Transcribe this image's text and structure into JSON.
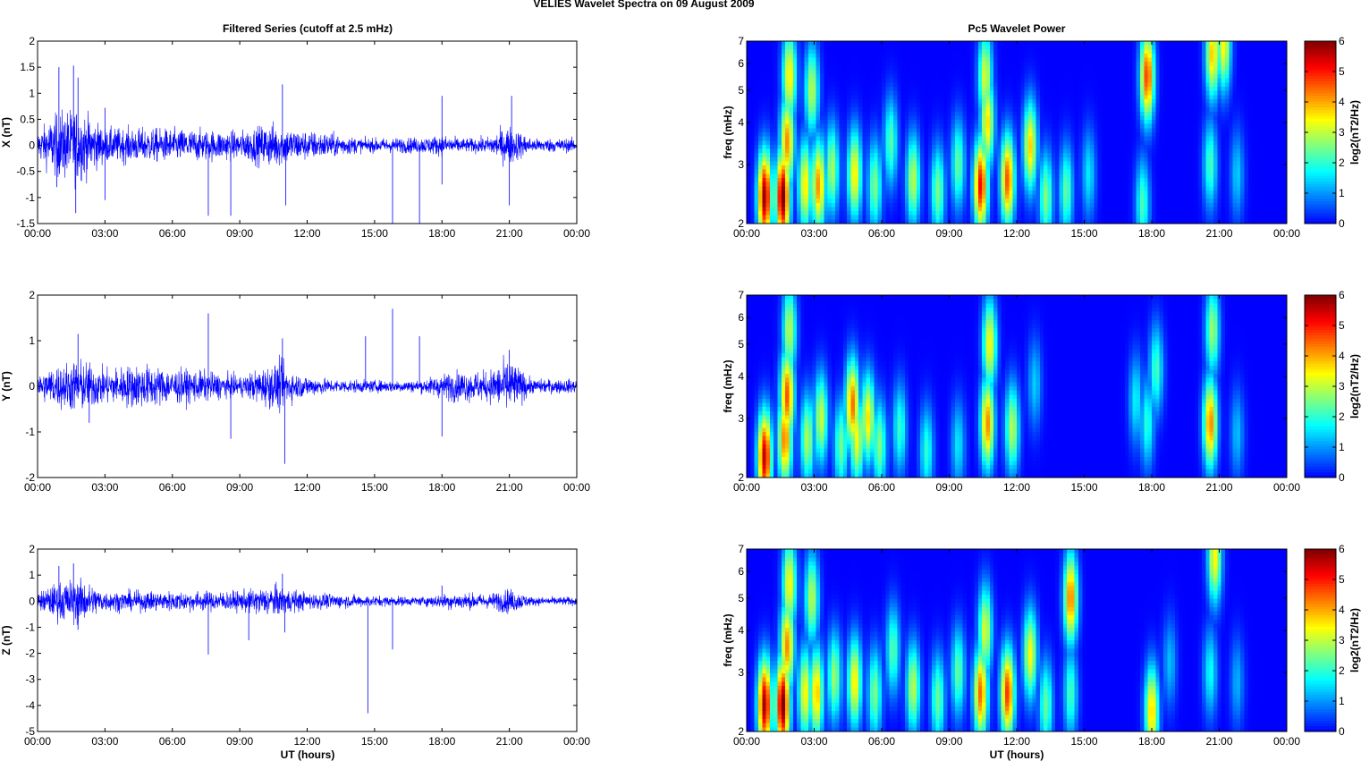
{
  "figure": {
    "title": "VELIES Wavelet Spectra on 09 August    2009",
    "left_title": "Filtered Series (cutoff at 2.5 mHz)",
    "right_title": "Pc5 Wavelet Power",
    "xlabel": "UT (hours)"
  },
  "chart_data": [
    {
      "type": "line",
      "name": "X",
      "ylabel": "X (nT)",
      "xlim": [
        0,
        24
      ],
      "ylim": [
        -1.5,
        2
      ],
      "yticks": [
        -1.5,
        -1,
        -0.5,
        0,
        0.5,
        1,
        1.5,
        2
      ],
      "yticklabels": [
        "-1.5",
        "-1",
        "-0.5",
        "0",
        "0.5",
        "1",
        "1.5",
        "2"
      ],
      "xticklabels": [
        "00:00",
        "03:00",
        "06:00",
        "09:00",
        "12:00",
        "15:00",
        "18:00",
        "21:00",
        "00:00"
      ],
      "line_color": "#0000ff",
      "envelope": [
        [
          0,
          0.25
        ],
        [
          1,
          0.6
        ],
        [
          1.8,
          0.65
        ],
        [
          3,
          0.3
        ],
        [
          5,
          0.3
        ],
        [
          7,
          0.28
        ],
        [
          9,
          0.25
        ],
        [
          10.5,
          0.4
        ],
        [
          11.5,
          0.28
        ],
        [
          13,
          0.22
        ],
        [
          14.5,
          0.12
        ],
        [
          17,
          0.14
        ],
        [
          18,
          0.18
        ],
        [
          19,
          0.12
        ],
        [
          20,
          0.14
        ],
        [
          21,
          0.35
        ],
        [
          22,
          0.12
        ],
        [
          24,
          0.12
        ]
      ],
      "spikes": [
        [
          0.95,
          1.5
        ],
        [
          0.85,
          -0.8
        ],
        [
          1.6,
          1.53
        ],
        [
          1.7,
          -1.3
        ],
        [
          1.8,
          1.3
        ],
        [
          3.0,
          -1.05
        ],
        [
          3.0,
          0.72
        ],
        [
          7.6,
          -1.35
        ],
        [
          8.6,
          -1.35
        ],
        [
          10.9,
          1.17
        ],
        [
          11.05,
          -1.15
        ],
        [
          15.8,
          -1.5
        ],
        [
          17.0,
          -1.5
        ],
        [
          18.0,
          0.95
        ],
        [
          18.0,
          -0.75
        ],
        [
          21.1,
          0.95
        ],
        [
          21.0,
          -1.15
        ]
      ]
    },
    {
      "type": "line",
      "name": "Y",
      "ylabel": "Y (nT)",
      "xlim": [
        0,
        24
      ],
      "ylim": [
        -2,
        2
      ],
      "yticks": [
        -2,
        -1,
        0,
        1,
        2
      ],
      "yticklabels": [
        "-2",
        "-1",
        "0",
        "1",
        "2"
      ],
      "xticklabels": [
        "00:00",
        "03:00",
        "06:00",
        "09:00",
        "12:00",
        "15:00",
        "18:00",
        "21:00",
        "00:00"
      ],
      "line_color": "#0000ff",
      "envelope": [
        [
          0,
          0.25
        ],
        [
          1,
          0.45
        ],
        [
          1.8,
          0.55
        ],
        [
          3,
          0.35
        ],
        [
          4.5,
          0.45
        ],
        [
          6,
          0.35
        ],
        [
          7.5,
          0.3
        ],
        [
          9,
          0.2
        ],
        [
          10.8,
          0.5
        ],
        [
          11.5,
          0.25
        ],
        [
          13,
          0.14
        ],
        [
          15,
          0.12
        ],
        [
          17,
          0.12
        ],
        [
          18.5,
          0.3
        ],
        [
          20,
          0.3
        ],
        [
          21,
          0.55
        ],
        [
          22,
          0.14
        ],
        [
          24,
          0.14
        ]
      ],
      "spikes": [
        [
          1.8,
          1.15
        ],
        [
          2.3,
          -0.8
        ],
        [
          7.6,
          1.6
        ],
        [
          8.6,
          -1.15
        ],
        [
          10.9,
          1.05
        ],
        [
          11.0,
          -1.7
        ],
        [
          14.6,
          1.1
        ],
        [
          15.8,
          1.7
        ],
        [
          17.0,
          1.1
        ],
        [
          18.0,
          -1.1
        ],
        [
          21.0,
          0.8
        ]
      ]
    },
    {
      "type": "line",
      "name": "Z",
      "ylabel": "Z (nT)",
      "xlim": [
        0,
        24
      ],
      "ylim": [
        -5,
        2
      ],
      "yticks": [
        -5,
        -4,
        -3,
        -2,
        -1,
        0,
        1,
        2
      ],
      "yticklabels": [
        "-5",
        "-4",
        "-3",
        "-2",
        "-1",
        "0",
        "1",
        "2"
      ],
      "xticklabels": [
        "00:00",
        "03:00",
        "06:00",
        "09:00",
        "12:00",
        "15:00",
        "18:00",
        "21:00",
        "00:00"
      ],
      "line_color": "#0000ff",
      "envelope": [
        [
          0,
          0.3
        ],
        [
          1,
          0.7
        ],
        [
          1.8,
          0.8
        ],
        [
          3,
          0.35
        ],
        [
          6,
          0.35
        ],
        [
          9,
          0.35
        ],
        [
          10.5,
          0.55
        ],
        [
          12,
          0.3
        ],
        [
          14.5,
          0.2
        ],
        [
          17,
          0.15
        ],
        [
          18.5,
          0.3
        ],
        [
          20,
          0.25
        ],
        [
          21,
          0.45
        ],
        [
          22,
          0.15
        ],
        [
          24,
          0.15
        ]
      ],
      "spikes": [
        [
          0.95,
          1.35
        ],
        [
          1.6,
          1.45
        ],
        [
          1.8,
          -1.1
        ],
        [
          7.6,
          -2.05
        ],
        [
          9.4,
          -1.5
        ],
        [
          10.9,
          1.05
        ],
        [
          11.0,
          -1.2
        ],
        [
          14.7,
          -4.3
        ],
        [
          15.8,
          -1.85
        ],
        [
          18.0,
          0.6
        ]
      ]
    },
    {
      "type": "heatmap",
      "name": "X wavelet",
      "ylabel": "freq (mHz)",
      "ylim": [
        2,
        7
      ],
      "yscale": "log",
      "yticks": [
        2,
        3,
        4,
        5,
        6,
        7
      ],
      "yticklabels": [
        "2",
        "3",
        "4",
        "5",
        "6",
        "7"
      ],
      "xlim": [
        0,
        24
      ],
      "xticklabels": [
        "00:00",
        "03:00",
        "06:00",
        "09:00",
        "12:00",
        "15:00",
        "18:00",
        "21:00",
        "00:00"
      ],
      "colorbar": {
        "label": "log2(nT2/Hz)",
        "range": [
          0,
          6
        ],
        "ticks": [
          "0",
          "1",
          "2",
          "3",
          "4",
          "5",
          "6"
        ]
      },
      "blobs": [
        [
          0.8,
          2.4,
          5.9
        ],
        [
          1.6,
          2.4,
          6.1
        ],
        [
          1.8,
          3.5,
          4.2
        ],
        [
          1.9,
          5.5,
          3.6
        ],
        [
          2.6,
          2.6,
          3.6
        ],
        [
          3.2,
          2.6,
          4.2
        ],
        [
          2.9,
          5.0,
          3.0
        ],
        [
          3.8,
          2.9,
          2.9
        ],
        [
          4.8,
          2.8,
          3.6
        ],
        [
          5.7,
          2.6,
          2.6
        ],
        [
          6.4,
          3.5,
          2.3
        ],
        [
          7.4,
          2.7,
          3.0
        ],
        [
          8.5,
          2.5,
          2.6
        ],
        [
          9.4,
          3.0,
          2.4
        ],
        [
          10.4,
          2.6,
          5.2
        ],
        [
          10.7,
          4.0,
          3.6
        ],
        [
          10.6,
          5.5,
          3.2
        ],
        [
          11.6,
          2.7,
          4.6
        ],
        [
          12.6,
          3.4,
          3.7
        ],
        [
          13.3,
          2.4,
          2.6
        ],
        [
          14.2,
          2.5,
          2.4
        ],
        [
          15.2,
          2.8,
          1.6
        ],
        [
          17.6,
          2.3,
          2.2
        ],
        [
          17.8,
          5.5,
          4.8
        ],
        [
          20.6,
          3.0,
          2.2
        ],
        [
          20.7,
          6.4,
          3.8
        ],
        [
          21.2,
          6.8,
          3.5
        ],
        [
          21.8,
          2.8,
          1.4
        ]
      ]
    },
    {
      "type": "heatmap",
      "name": "Y wavelet",
      "ylabel": "freq (mHz)",
      "ylim": [
        2,
        7
      ],
      "yscale": "log",
      "yticks": [
        2,
        3,
        4,
        5,
        6,
        7
      ],
      "yticklabels": [
        "2",
        "3",
        "4",
        "5",
        "6",
        "7"
      ],
      "xlim": [
        0,
        24
      ],
      "xticklabels": [
        "00:00",
        "03:00",
        "06:00",
        "09:00",
        "12:00",
        "15:00",
        "18:00",
        "21:00",
        "00:00"
      ],
      "colorbar": {
        "label": "log2(nT2/Hz)",
        "range": [
          0,
          6
        ],
        "ticks": [
          "0",
          "1",
          "2",
          "3",
          "4",
          "5",
          "6"
        ]
      },
      "blobs": [
        [
          0.8,
          2.3,
          5.6
        ],
        [
          1.7,
          2.6,
          4.4
        ],
        [
          1.8,
          3.5,
          4.6
        ],
        [
          1.9,
          5.5,
          3.0
        ],
        [
          2.7,
          2.6,
          2.9
        ],
        [
          3.3,
          3.0,
          3.1
        ],
        [
          4.2,
          2.5,
          2.5
        ],
        [
          4.7,
          3.3,
          4.4
        ],
        [
          4.9,
          2.6,
          3.4
        ],
        [
          5.4,
          3.0,
          3.6
        ],
        [
          5.9,
          2.5,
          2.6
        ],
        [
          6.8,
          2.8,
          2.1
        ],
        [
          8.0,
          2.4,
          2.0
        ],
        [
          9.4,
          2.5,
          1.6
        ],
        [
          10.7,
          2.9,
          4.2
        ],
        [
          10.8,
          5.0,
          3.5
        ],
        [
          11.8,
          2.8,
          3.0
        ],
        [
          12.8,
          3.8,
          1.4
        ],
        [
          17.3,
          3.4,
          1.7
        ],
        [
          17.8,
          2.9,
          2.0
        ],
        [
          18.2,
          4.2,
          2.2
        ],
        [
          20.6,
          2.9,
          4.3
        ],
        [
          20.7,
          5.5,
          2.8
        ],
        [
          21.8,
          2.7,
          1.3
        ]
      ]
    },
    {
      "type": "heatmap",
      "name": "Z wavelet",
      "ylabel": "freq (mHz)",
      "ylim": [
        2,
        7
      ],
      "yscale": "log",
      "yticks": [
        2,
        3,
        4,
        5,
        6,
        7
      ],
      "yticklabels": [
        "2",
        "3",
        "4",
        "5",
        "6",
        "7"
      ],
      "xlim": [
        0,
        24
      ],
      "xticklabels": [
        "00:00",
        "03:00",
        "06:00",
        "09:00",
        "12:00",
        "15:00",
        "18:00",
        "21:00",
        "00:00"
      ],
      "colorbar": {
        "label": "log2(nT2/Hz)",
        "range": [
          0,
          6
        ],
        "ticks": [
          "0",
          "1",
          "2",
          "3",
          "4",
          "5",
          "6"
        ]
      },
      "blobs": [
        [
          0.8,
          2.4,
          5.8
        ],
        [
          1.6,
          2.4,
          6.1
        ],
        [
          1.8,
          3.6,
          4.2
        ],
        [
          1.9,
          5.5,
          3.5
        ],
        [
          2.6,
          2.6,
          3.5
        ],
        [
          3.1,
          2.6,
          3.9
        ],
        [
          2.9,
          5.0,
          3.0
        ],
        [
          3.9,
          2.9,
          2.8
        ],
        [
          4.8,
          2.8,
          3.6
        ],
        [
          5.7,
          2.6,
          2.6
        ],
        [
          6.5,
          3.5,
          2.3
        ],
        [
          7.4,
          2.7,
          3.0
        ],
        [
          8.5,
          2.5,
          2.5
        ],
        [
          9.4,
          3.0,
          2.4
        ],
        [
          10.4,
          2.6,
          4.5
        ],
        [
          10.6,
          4.0,
          3.2
        ],
        [
          11.6,
          2.6,
          4.8
        ],
        [
          12.6,
          3.4,
          3.4
        ],
        [
          13.3,
          2.4,
          2.4
        ],
        [
          14.4,
          2.6,
          2.2
        ],
        [
          14.4,
          5.0,
          4.4
        ],
        [
          18.0,
          2.3,
          3.8
        ],
        [
          18.8,
          3.2,
          1.3
        ],
        [
          20.6,
          3.0,
          1.8
        ],
        [
          20.8,
          6.6,
          3.5
        ],
        [
          21.8,
          2.8,
          1.2
        ]
      ]
    }
  ]
}
